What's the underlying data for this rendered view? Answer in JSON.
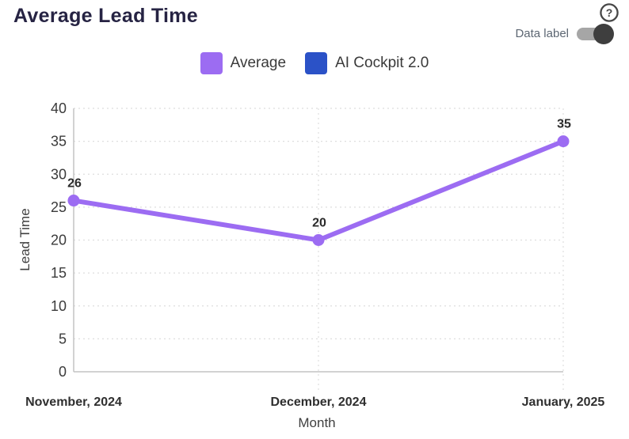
{
  "header": {
    "title": "Average Lead Time",
    "help_icon": "question-mark-circle",
    "data_label_toggle": {
      "label": "Data label",
      "state": "on"
    }
  },
  "legend": {
    "items": [
      {
        "label": "Average",
        "color": "#9c6cf2"
      },
      {
        "label": "AI Cockpit 2.0",
        "color": "#2b52c7"
      }
    ]
  },
  "chart_data": {
    "type": "line",
    "title": "Average Lead Time",
    "xlabel": "Month",
    "ylabel": "Lead Time",
    "categories": [
      "November, 2024",
      "December, 2024",
      "January, 2025"
    ],
    "series": [
      {
        "name": "Average",
        "color": "#9c6cf2",
        "values": [
          26,
          20,
          35
        ]
      },
      {
        "name": "AI Cockpit 2.0",
        "color": "#2b52c7",
        "values": []
      }
    ],
    "ylim": [
      0,
      40
    ],
    "yticks": [
      0,
      5,
      10,
      15,
      20,
      25,
      30,
      35,
      40
    ],
    "grid": true,
    "data_labels_visible": true,
    "legend_position": "top",
    "colors": {
      "gridline": "#dedede",
      "axis_line": "#c3c3c3",
      "tick_text": "#3b3b3b",
      "category_text": "#2f2f2f",
      "data_label_text": "#2b2b2b"
    }
  }
}
